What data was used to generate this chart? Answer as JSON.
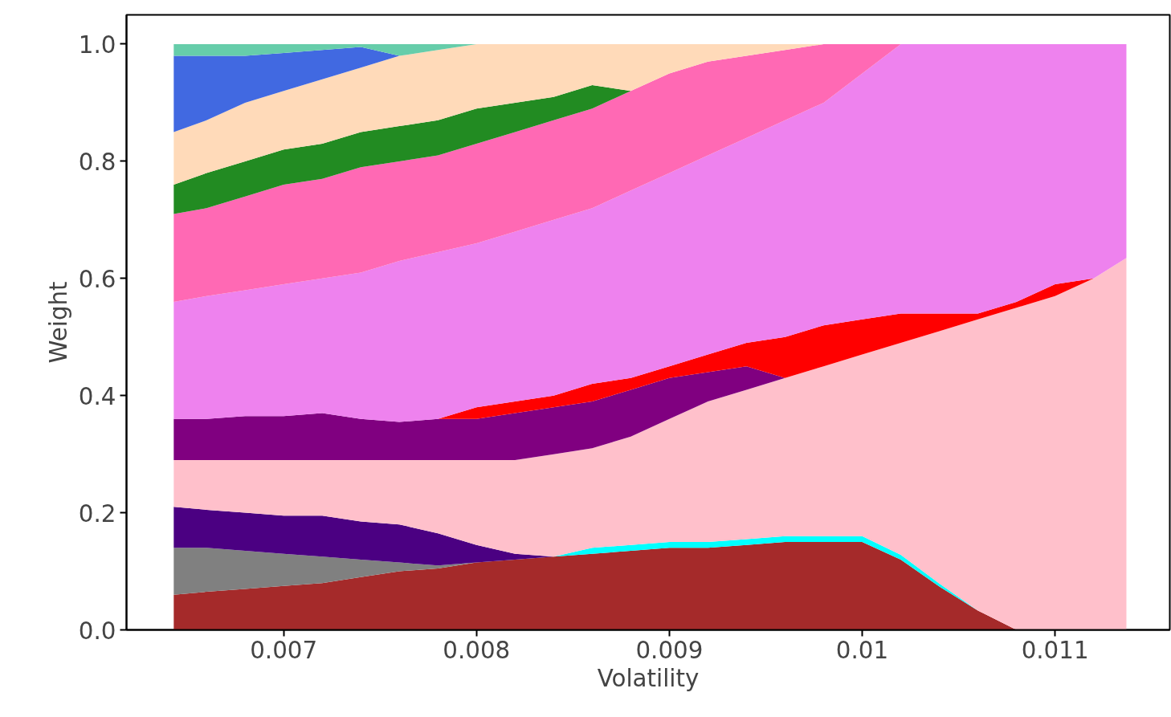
{
  "chart_data": {
    "type": "area",
    "stacked": true,
    "xlabel": "Volatility",
    "ylabel": "Weight",
    "x": [
      0.00643,
      0.0066,
      0.0068,
      0.007,
      0.0072,
      0.0074,
      0.0076,
      0.0078,
      0.008,
      0.0082,
      0.0084,
      0.0086,
      0.0088,
      0.009,
      0.0092,
      0.0094,
      0.0096,
      0.0098,
      0.01,
      0.0102,
      0.0104,
      0.0106,
      0.0108,
      0.011,
      0.0112,
      0.01137
    ],
    "xlim": [
      0.006185,
      0.011595
    ],
    "xticks": [
      0.007,
      0.008,
      0.009,
      0.01,
      0.011
    ],
    "ylim": [
      0,
      1.05
    ],
    "yticks": [
      {
        "value": 0,
        "label": "0.0"
      },
      0.2,
      0.4,
      0.6,
      0.8,
      {
        "value": 1,
        "label": "1.0"
      }
    ],
    "grid": false,
    "series": [
      {
        "color": "#a52a2a",
        "values": [
          0.06,
          0.065,
          0.07,
          0.075,
          0.08,
          0.09,
          0.1,
          0.105,
          0.115,
          0.12,
          0.125,
          0.13,
          0.135,
          0.14,
          0.14,
          0.145,
          0.15,
          0.15,
          0.15,
          0.12,
          0.074,
          0.033,
          0,
          null,
          null,
          null
        ]
      },
      {
        "color": "#808080",
        "values": [
          0.08,
          0.075,
          0.065,
          0.055,
          0.045,
          0.03,
          0.015,
          0.005,
          0,
          null,
          null,
          null,
          null,
          null,
          null,
          null,
          null,
          null,
          null,
          null,
          null,
          null,
          null,
          null,
          null,
          null
        ]
      },
      {
        "color": "#00ffff",
        "values": [
          null,
          null,
          null,
          null,
          null,
          null,
          null,
          null,
          null,
          null,
          0,
          0.01,
          0.01,
          0.01,
          0.01,
          0.01,
          0.01,
          0.01,
          0.01,
          0.008,
          0.005,
          0,
          null,
          null,
          null,
          null
        ]
      },
      {
        "color": "#4b0082",
        "values": [
          0.07,
          0.065,
          0.065,
          0.065,
          0.07,
          0.065,
          0.065,
          0.055,
          0.03,
          0.01,
          0,
          null,
          null,
          null,
          null,
          null,
          null,
          null,
          null,
          null,
          null,
          null,
          null,
          null,
          null,
          null
        ]
      },
      {
        "color": "#ffc0cb",
        "values": [
          0.08,
          0.085,
          0.09,
          0.095,
          0.095,
          0.105,
          0.11,
          0.125,
          0.145,
          0.16,
          0.175,
          0.17,
          0.185,
          0.21,
          0.24,
          0.255,
          0.27,
          0.29,
          0.31,
          0.362,
          0.431,
          0.497,
          0.55,
          0.57,
          0.6,
          0.635
        ]
      },
      {
        "color": "#800080",
        "values": [
          0.07,
          0.07,
          0.075,
          0.075,
          0.08,
          0.07,
          0.065,
          0.07,
          0.07,
          0.08,
          0.08,
          0.08,
          0.08,
          0.07,
          0.05,
          0.04,
          0,
          null,
          null,
          null,
          null,
          null,
          null,
          null,
          null,
          null
        ]
      },
      {
        "color": "#ff0000",
        "values": [
          null,
          null,
          null,
          null,
          null,
          null,
          null,
          0,
          0.02,
          0.02,
          0.02,
          0.03,
          0.02,
          0.02,
          0.03,
          0.04,
          0.07,
          0.07,
          0.06,
          0.05,
          0.03,
          0.01,
          0.01,
          0.02,
          0,
          null
        ]
      },
      {
        "color": "#ee82ee",
        "values": [
          0.2,
          0.21,
          0.215,
          0.225,
          0.23,
          0.25,
          0.275,
          0.285,
          0.28,
          0.29,
          0.3,
          0.3,
          0.32,
          0.33,
          0.34,
          0.35,
          0.37,
          0.38,
          0.42,
          0.46,
          0.46,
          0.46,
          0.44,
          0.41,
          0.4,
          0.365
        ]
      },
      {
        "color": "#ff69b4",
        "values": [
          0.15,
          0.15,
          0.16,
          0.17,
          0.17,
          0.18,
          0.17,
          0.165,
          0.17,
          0.17,
          0.17,
          0.17,
          0.17,
          0.17,
          0.16,
          0.14,
          0.12,
          0.1,
          0.05,
          0,
          null,
          null,
          null,
          null,
          null,
          null
        ]
      },
      {
        "color": "#228b22",
        "values": [
          0.05,
          0.06,
          0.06,
          0.06,
          0.06,
          0.06,
          0.06,
          0.06,
          0.06,
          0.05,
          0.04,
          0.04,
          0,
          null,
          null,
          null,
          null,
          null,
          null,
          null,
          null,
          null,
          null,
          null,
          null,
          null
        ]
      },
      {
        "color": "#ffdab9",
        "values": [
          0.09,
          0.09,
          0.1,
          0.1,
          0.11,
          0.11,
          0.12,
          0.12,
          0.11,
          0.1,
          0.09,
          0.07,
          0.08,
          0.05,
          0.03,
          0.02,
          0.01,
          0,
          null,
          null,
          null,
          null,
          null,
          null,
          null,
          null
        ]
      },
      {
        "color": "#4169e1",
        "values": [
          0.13,
          0.11,
          0.08,
          0.065,
          0.05,
          0.035,
          0,
          null,
          null,
          null,
          null,
          null,
          null,
          null,
          null,
          null,
          null,
          null,
          null,
          null,
          null,
          null,
          null,
          null,
          null,
          null
        ]
      },
      {
        "color": "#66cdaa",
        "values": [
          0.02,
          0.02,
          0.02,
          0.015,
          0.01,
          0.005,
          0.02,
          0.01,
          0,
          null,
          null,
          null,
          null,
          null,
          null,
          null,
          null,
          null,
          null,
          null,
          null,
          null,
          null,
          null,
          null,
          null
        ]
      }
    ]
  }
}
